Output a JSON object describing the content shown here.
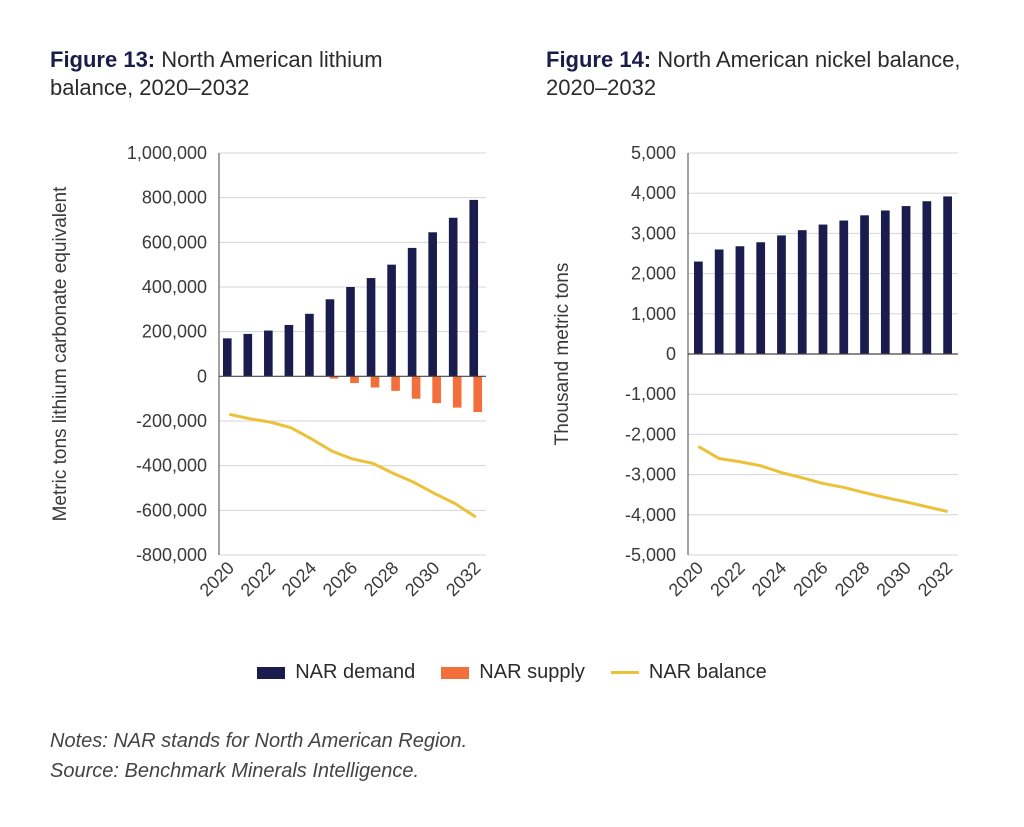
{
  "figure13": {
    "prefix": "Figure 13:",
    "title": " North American lithium balance, 2020–2032"
  },
  "figure14": {
    "prefix": "Figure 14:",
    "title": " North American nickel balance, 2020–2032"
  },
  "legend": {
    "demand": "NAR demand",
    "supply": "NAR supply",
    "balance": "NAR balance"
  },
  "notes": {
    "line1": "Notes: NAR stands for North American Region.",
    "line2": "Source: Benchmark Minerals Intelligence."
  },
  "colors": {
    "demand": "#1b1c4e",
    "supply": "#f26e3a",
    "balance": "#ecc13a",
    "grid": "#d6d6d6",
    "axis": "#444444"
  },
  "chart_data": [
    {
      "type": "bar",
      "title": "North American lithium balance, 2020–2032",
      "ylabel": "Metric tons lithium carbonate equivalent",
      "xlabel": "",
      "ylim": [
        -800000,
        1000000
      ],
      "yticks": [
        -800000,
        -600000,
        -400000,
        -200000,
        0,
        200000,
        400000,
        600000,
        800000,
        1000000
      ],
      "ytick_labels": [
        "-800,000",
        "-600,000",
        "-400,000",
        "-200,000",
        "0",
        "200,000",
        "400,000",
        "600,000",
        "800,000",
        "1,000,000"
      ],
      "x": [
        2020,
        2021,
        2022,
        2023,
        2024,
        2025,
        2026,
        2027,
        2028,
        2029,
        2030,
        2031,
        2032
      ],
      "xtick_labels": [
        "2020",
        "2022",
        "2024",
        "2026",
        "2028",
        "2030",
        "2032"
      ],
      "grid": true,
      "legend": "bottom-center",
      "series": [
        {
          "name": "NAR demand",
          "type": "bar",
          "values": [
            170000,
            190000,
            205000,
            230000,
            280000,
            345000,
            400000,
            440000,
            500000,
            575000,
            645000,
            710000,
            790000
          ]
        },
        {
          "name": "NAR supply",
          "type": "bar",
          "values": [
            0,
            0,
            0,
            0,
            0,
            -10000,
            -30000,
            -50000,
            -65000,
            -100000,
            -120000,
            -140000,
            -160000
          ]
        },
        {
          "name": "NAR balance",
          "type": "line",
          "values": [
            -170000,
            -190000,
            -205000,
            -230000,
            -280000,
            -335000,
            -370000,
            -390000,
            -435000,
            -475000,
            -525000,
            -570000,
            -630000
          ]
        }
      ]
    },
    {
      "type": "bar",
      "title": "North American nickel balance, 2020–2032",
      "ylabel": "Thousand metric tons",
      "xlabel": "",
      "ylim": [
        -5000,
        5000
      ],
      "yticks": [
        -5000,
        -4000,
        -3000,
        -2000,
        -1000,
        0,
        1000,
        2000,
        3000,
        4000,
        5000
      ],
      "ytick_labels": [
        "-5,000",
        "-4,000",
        "-3,000",
        "-2,000",
        "-1,000",
        "0",
        "1,000",
        "2,000",
        "3,000",
        "4,000",
        "5,000"
      ],
      "x": [
        2020,
        2021,
        2022,
        2023,
        2024,
        2025,
        2026,
        2027,
        2028,
        2029,
        2030,
        2031,
        2032
      ],
      "xtick_labels": [
        "2020",
        "2022",
        "2024",
        "2026",
        "2028",
        "2030",
        "2032"
      ],
      "grid": true,
      "legend": "bottom-center",
      "series": [
        {
          "name": "NAR demand",
          "type": "bar",
          "values": [
            2300,
            2600,
            2680,
            2780,
            2950,
            3080,
            3220,
            3320,
            3450,
            3570,
            3680,
            3800,
            3920
          ]
        },
        {
          "name": "NAR supply",
          "type": "bar",
          "values": [
            0,
            0,
            0,
            0,
            0,
            0,
            0,
            0,
            0,
            0,
            0,
            0,
            0
          ]
        },
        {
          "name": "NAR balance",
          "type": "line",
          "values": [
            -2300,
            -2600,
            -2680,
            -2780,
            -2950,
            -3080,
            -3220,
            -3320,
            -3450,
            -3570,
            -3680,
            -3800,
            -3920
          ]
        }
      ]
    }
  ]
}
